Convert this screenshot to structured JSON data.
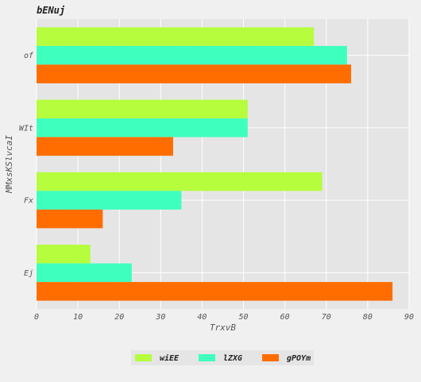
{
  "chart_data": {
    "type": "bar",
    "orientation": "horizontal",
    "title": "bENuj",
    "xlabel": "TrxvB",
    "ylabel": "MMxsKSlvcaI",
    "categories": [
      "of",
      "WIt",
      "Fx",
      "Ej"
    ],
    "xlim": [
      0,
      90
    ],
    "xticks": [
      "0",
      "10",
      "20",
      "30",
      "40",
      "50",
      "60",
      "70",
      "80",
      "90"
    ],
    "grid": true,
    "legend_position": "bottom-center",
    "series": [
      {
        "name": "wiEE",
        "color": "#b5fd3d",
        "values": [
          67,
          51,
          69,
          13
        ]
      },
      {
        "name": "lZXG",
        "color": "#3effbe",
        "values": [
          75,
          51,
          35,
          23
        ]
      },
      {
        "name": "gPOYm",
        "color": "#ff6d00",
        "values": [
          76,
          33,
          16,
          86
        ]
      }
    ]
  }
}
